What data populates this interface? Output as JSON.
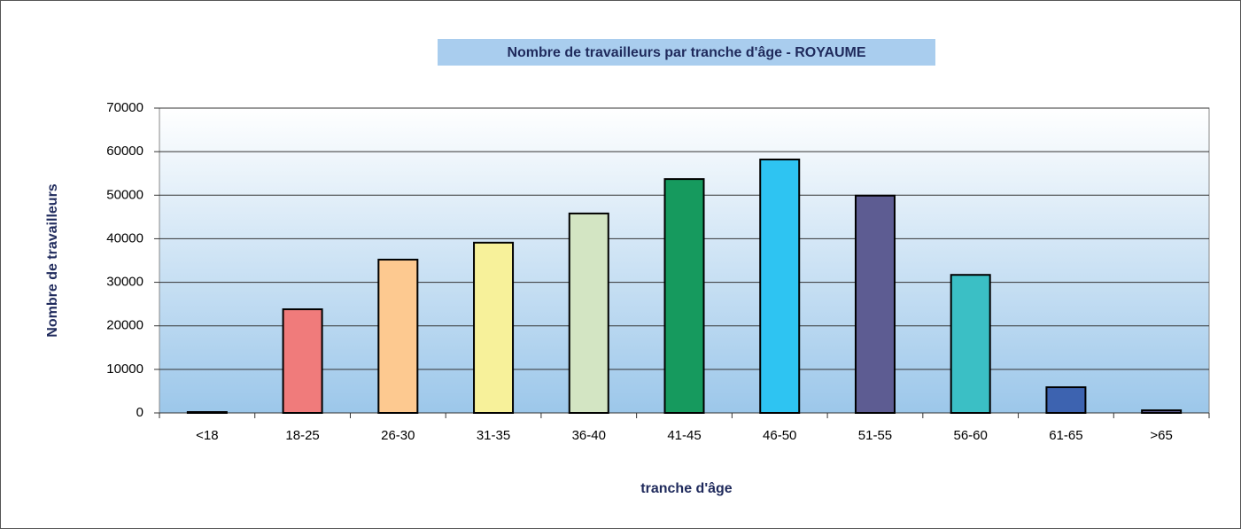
{
  "chart_data": {
    "type": "bar",
    "title": "Nombre de travailleurs par tranche d'âge - ROYAUME",
    "xlabel": "tranche d'âge",
    "ylabel": "Nombre de travailleurs",
    "categories": [
      "<18",
      "18-25",
      "26-30",
      "31-35",
      "36-40",
      "41-45",
      "46-50",
      "51-55",
      "56-60",
      "61-65",
      ">65"
    ],
    "values": [
      200,
      23800,
      35200,
      39100,
      45800,
      53700,
      58200,
      49900,
      31700,
      5900,
      600
    ],
    "colors": [
      "#5d5c92",
      "#f07b7b",
      "#fdc990",
      "#f7f19a",
      "#d3e5c3",
      "#169a5e",
      "#2ec4f2",
      "#5d5c92",
      "#3bbfc5",
      "#3d63b0",
      "#5d5c92"
    ],
    "ylim": [
      0,
      70000
    ],
    "yticks": [
      0,
      10000,
      20000,
      30000,
      40000,
      50000,
      60000,
      70000
    ],
    "grid": true
  }
}
